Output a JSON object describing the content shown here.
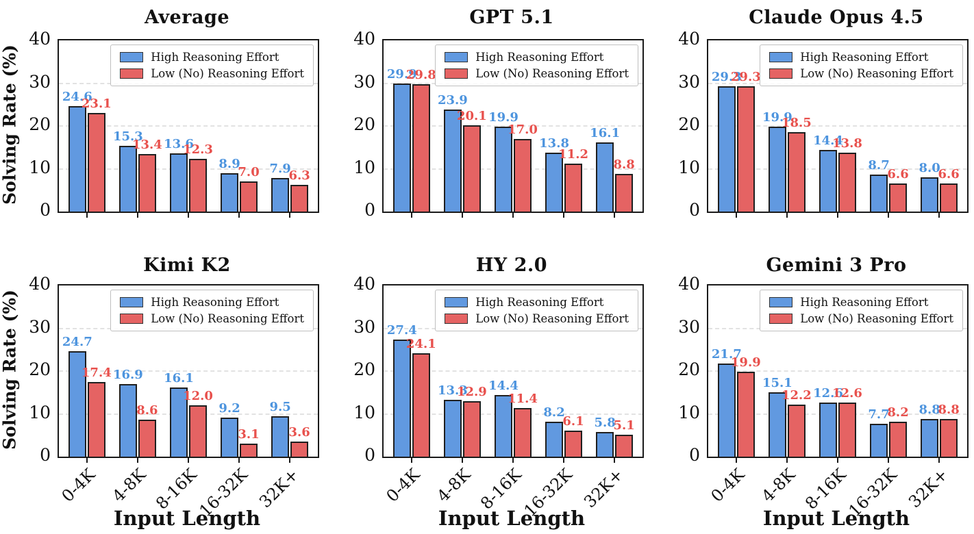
{
  "figure_name": "solving-rate-by-input-length",
  "colors": {
    "high_bar": "#6199E0",
    "low_bar": "#E56363",
    "high_label_text": "#4D94DE",
    "low_label_text": "#E8514D",
    "bar_edge": "#1f1f1f",
    "axis_spine": "#1a1a1a",
    "gridline": "#e2e2e2"
  },
  "chart_data": {
    "type": "bar",
    "layout": {
      "rows": 2,
      "cols": 3
    },
    "categories": [
      "0-4K",
      "4-8K",
      "8-16K",
      "16-32K",
      "32K+"
    ],
    "xlabel": "Input Length",
    "ylabel": "Solving Rate (%)",
    "ylim": [
      0,
      40
    ],
    "yticks": [
      "0",
      "10",
      "20",
      "30",
      "40"
    ],
    "grid": "horizontal-dashed",
    "legend": {
      "position": "upper right",
      "entries": [
        "High Reasoning Effort",
        "Low (No) Reasoning Effort"
      ]
    },
    "series_names": [
      "High Reasoning Effort",
      "Low (No) Reasoning Effort"
    ],
    "panels": [
      {
        "title": "Average",
        "series": [
          {
            "name": "High Reasoning Effort",
            "values": [
              24.6,
              15.3,
              13.6,
              8.9,
              7.9
            ]
          },
          {
            "name": "Low (No) Reasoning Effort",
            "values": [
              23.1,
              13.4,
              12.3,
              7.0,
              6.3
            ]
          }
        ]
      },
      {
        "title": "GPT 5.1",
        "series": [
          {
            "name": "High Reasoning Effort",
            "values": [
              29.9,
              23.9,
              19.9,
              13.8,
              16.1
            ]
          },
          {
            "name": "Low (No) Reasoning Effort",
            "values": [
              29.8,
              20.1,
              17.0,
              11.2,
              8.8
            ]
          }
        ]
      },
      {
        "title": "Claude Opus 4.5",
        "series": [
          {
            "name": "High Reasoning Effort",
            "values": [
              29.3,
              19.9,
              14.4,
              8.7,
              8.0
            ]
          },
          {
            "name": "Low (No) Reasoning Effort",
            "values": [
              29.3,
              18.5,
              13.8,
              6.6,
              6.6
            ]
          }
        ]
      },
      {
        "title": "Kimi K2",
        "series": [
          {
            "name": "High Reasoning Effort",
            "values": [
              24.7,
              16.9,
              16.1,
              9.2,
              9.5
            ]
          },
          {
            "name": "Low (No) Reasoning Effort",
            "values": [
              17.4,
              8.6,
              12.0,
              3.1,
              3.6
            ]
          }
        ]
      },
      {
        "title": "HY 2.0",
        "series": [
          {
            "name": "High Reasoning Effort",
            "values": [
              27.4,
              13.3,
              14.4,
              8.2,
              5.8
            ]
          },
          {
            "name": "Low (No) Reasoning Effort",
            "values": [
              24.1,
              12.9,
              11.4,
              6.1,
              5.1
            ]
          }
        ]
      },
      {
        "title": "Gemini 3 Pro",
        "series": [
          {
            "name": "High Reasoning Effort",
            "values": [
              21.7,
              15.1,
              12.6,
              7.7,
              8.8
            ]
          },
          {
            "name": "Low (No) Reasoning Effort",
            "values": [
              19.9,
              12.2,
              12.6,
              8.2,
              8.8
            ]
          }
        ]
      }
    ]
  }
}
